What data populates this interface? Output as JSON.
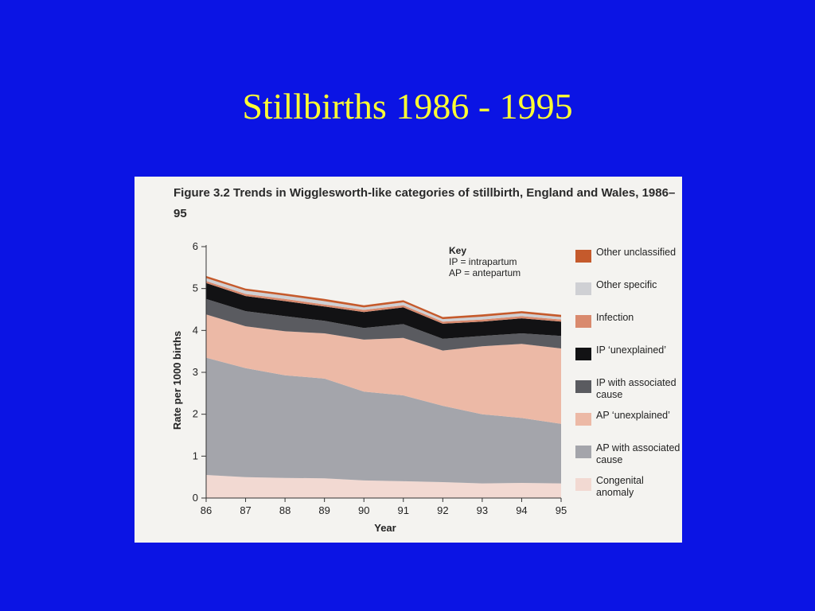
{
  "slide": {
    "title": "Stillbirths 1986 - 1995"
  },
  "figure": {
    "caption": "Figure 3.2 Trends in Wigglesworth-like categories of stillbirth, England and Wales, 1986–95",
    "key": {
      "title": "Key",
      "lines": [
        "IP = intrapartum",
        "AP = antepartum"
      ]
    }
  },
  "chart_data": {
    "type": "area",
    "stacked": true,
    "xlabel": "Year",
    "ylabel": "Rate per 1000 births",
    "ylim": [
      0,
      6
    ],
    "x": [
      "86",
      "87",
      "88",
      "89",
      "90",
      "91",
      "92",
      "93",
      "94",
      "95"
    ],
    "yticks": [
      "0",
      "1",
      "2",
      "3",
      "4",
      "5",
      "6"
    ],
    "series": [
      {
        "name": "Congenital anomaly",
        "color": "#f2d9d2",
        "values": [
          0.55,
          0.5,
          0.48,
          0.47,
          0.42,
          0.4,
          0.38,
          0.35,
          0.36,
          0.35
        ]
      },
      {
        "name": "AP with associated cause",
        "color": "#a4a5ab",
        "values": [
          2.8,
          2.6,
          2.45,
          2.38,
          2.12,
          2.05,
          1.82,
          1.65,
          1.55,
          1.42
        ]
      },
      {
        "name": "AP ‘unexplained’",
        "color": "#ecb9a6",
        "values": [
          1.03,
          1.0,
          1.05,
          1.08,
          1.24,
          1.37,
          1.32,
          1.62,
          1.77,
          1.8
        ]
      },
      {
        "name": "IP with associated cause",
        "color": "#5a5b60",
        "values": [
          0.37,
          0.36,
          0.36,
          0.3,
          0.28,
          0.33,
          0.28,
          0.25,
          0.25,
          0.3
        ]
      },
      {
        "name": "IP ‘unexplained’",
        "color": "#121214",
        "values": [
          0.38,
          0.36,
          0.36,
          0.34,
          0.38,
          0.4,
          0.36,
          0.34,
          0.36,
          0.34
        ]
      },
      {
        "name": "Infection",
        "color": "#d98a6e",
        "values": [
          0.05,
          0.05,
          0.05,
          0.05,
          0.05,
          0.05,
          0.05,
          0.05,
          0.05,
          0.05
        ]
      },
      {
        "name": "Other specific",
        "color": "#cfd0d4",
        "values": [
          0.07,
          0.08,
          0.08,
          0.08,
          0.06,
          0.07,
          0.06,
          0.07,
          0.07,
          0.06
        ]
      },
      {
        "name": "Other unclassified",
        "color": "#c55a2c",
        "values": [
          0.05,
          0.05,
          0.05,
          0.05,
          0.05,
          0.05,
          0.05,
          0.05,
          0.05,
          0.05
        ]
      }
    ],
    "legend": [
      {
        "label": "Other unclassified",
        "color": "#c55a2c"
      },
      {
        "label": "Other specific",
        "color": "#cfd0d4"
      },
      {
        "label": "Infection",
        "color": "#d98a6e"
      },
      {
        "label": "IP ‘unexplained’",
        "color": "#121214"
      },
      {
        "label": "IP with associated cause",
        "color": "#5a5b60"
      },
      {
        "label": "AP ‘unexplained’",
        "color": "#ecb9a6"
      },
      {
        "label": "AP with associated cause",
        "color": "#a4a5ab"
      },
      {
        "label": "Congenital anomaly",
        "color": "#f2d9d2"
      }
    ]
  }
}
